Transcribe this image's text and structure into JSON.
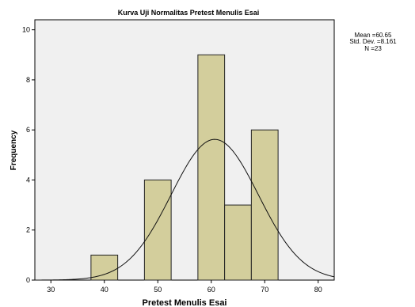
{
  "chart_data": {
    "type": "bar",
    "title": "Kurva Uji Normalitas Pretest Menulis Esai",
    "xlabel": "Pretest Menulis Esai",
    "ylabel": "Frequency",
    "xlim": [
      27,
      83
    ],
    "ylim": [
      0,
      10.4
    ],
    "xticks": [
      "30",
      "40",
      "50",
      "60",
      "70",
      "80"
    ],
    "yticks": [
      "0",
      "2",
      "4",
      "6",
      "8",
      "10"
    ],
    "bins": [
      {
        "x0": 37.5,
        "x1": 42.5,
        "value": 1
      },
      {
        "x0": 47.5,
        "x1": 52.5,
        "value": 4
      },
      {
        "x0": 57.5,
        "x1": 62.5,
        "value": 9
      },
      {
        "x0": 62.5,
        "x1": 67.5,
        "value": 3
      },
      {
        "x0": 67.5,
        "x1": 72.5,
        "value": 6
      }
    ],
    "normal_curve": {
      "mean": 60.65,
      "sd": 8.161,
      "n": 23
    },
    "stats": [
      "Mean =60.65",
      "Std. Dev. =8.161",
      "N =23"
    ],
    "grid": false,
    "colors": {
      "bar_fill": "#d3ce9c",
      "bar_stroke": "#222222",
      "plot_bg": "#f0f0f0",
      "curve": "#111111"
    }
  }
}
